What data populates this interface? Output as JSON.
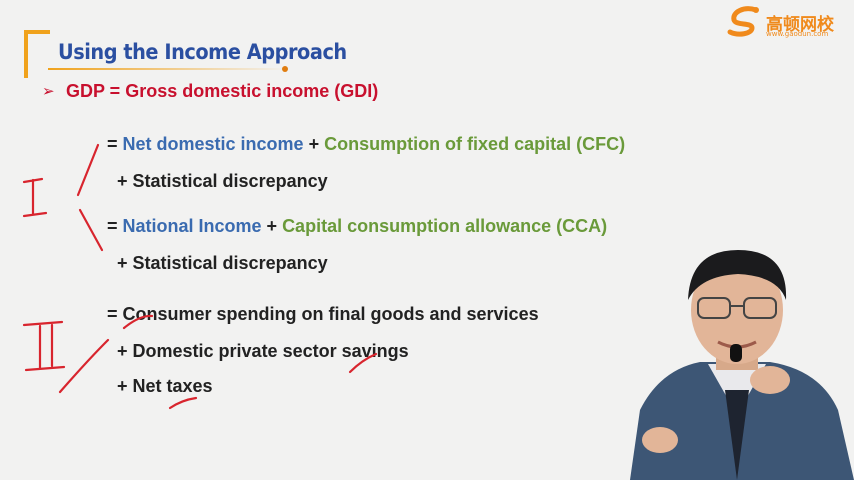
{
  "logo": {
    "name": "高顿网校",
    "url": "www.gaodun.com"
  },
  "slide": {
    "title": "Using the Income Approach",
    "bullet": {
      "lhs": "GDP = Gross domestic income (GDI)"
    },
    "group1": [
      {
        "prefix": "= ",
        "term1": "Net domestic income",
        "plus": " + ",
        "term2": "Consumption of fixed capital (CFC)"
      },
      {
        "text": "+ Statistical discrepancy"
      }
    ],
    "group2": [
      {
        "prefix": "= ",
        "term1": "National Income",
        "plus": " + ",
        "term2": "Capital consumption allowance (CCA)"
      },
      {
        "text": "+ Statistical discrepancy"
      }
    ],
    "group3": [
      {
        "text": "= Consumer spending on final goods and services"
      },
      {
        "text": "+ Domestic private sector savings"
      },
      {
        "text": "+ Net taxes"
      }
    ]
  },
  "colors": {
    "title": "#2b4fa1",
    "accent": "#f0a21c",
    "red": "#c8102e",
    "blue": "#3a6bb0",
    "green": "#6a9a3a"
  }
}
